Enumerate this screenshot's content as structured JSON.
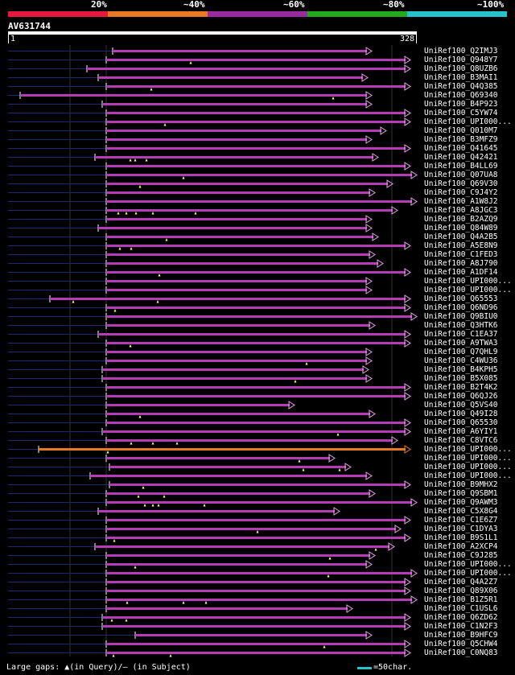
{
  "color_key": {
    "labels": [
      "20%",
      "~40%",
      "~60%",
      "~80%",
      "~100%"
    ],
    "colors": [
      "#e8173c",
      "#e87822",
      "#9a2b9e",
      "#23a81e",
      "#27c3c8"
    ]
  },
  "query": {
    "id": "AV631744",
    "start": "1",
    "end": "328"
  },
  "hits": [
    {
      "name": "UniRef100_Q2IMJ3",
      "start": 140,
      "end": 462,
      "color": "#b43cb4",
      "marks": []
    },
    {
      "name": "UniRef100_Q948Y7",
      "start": 132,
      "end": 510,
      "color": "#b43cb4",
      "marks": [
        237
      ]
    },
    {
      "name": "UniRef100_Q8UZB6",
      "start": 108,
      "end": 510,
      "color": "#b43cb4",
      "marks": []
    },
    {
      "name": "UniRef100_B3MAI1",
      "start": 122,
      "end": 457,
      "color": "#b43cb4",
      "marks": []
    },
    {
      "name": "UniRef100_Q4Q385",
      "start": 132,
      "end": 510,
      "color": "#b43cb4",
      "marks": [
        188
      ]
    },
    {
      "name": "UniRef100_Q69340",
      "start": 25,
      "end": 462,
      "color": "#b43cb4",
      "marks": [
        414
      ]
    },
    {
      "name": "UniRef100_B4P923",
      "start": 127,
      "end": 462,
      "color": "#b43cb4",
      "marks": []
    },
    {
      "name": "UniRef100_C5YW74",
      "start": 132,
      "end": 510,
      "color": "#b43cb4",
      "marks": []
    },
    {
      "name": "UniRef100_UPI000...",
      "start": 132,
      "end": 510,
      "color": "#b43cb4",
      "marks": [
        205
      ]
    },
    {
      "name": "UniRef100_Q010M7",
      "start": 132,
      "end": 480,
      "color": "#b43cb4",
      "marks": []
    },
    {
      "name": "UniRef100_B3MFZ9",
      "start": 132,
      "end": 462,
      "color": "#b43cb4",
      "marks": []
    },
    {
      "name": "UniRef100_Q41645",
      "start": 132,
      "end": 510,
      "color": "#b43cb4",
      "marks": []
    },
    {
      "name": "UniRef100_Q42421",
      "start": 118,
      "end": 470,
      "color": "#b43cb4",
      "marks": [
        162,
        168,
        182
      ]
    },
    {
      "name": "UniRef100_B4LL69",
      "start": 132,
      "end": 510,
      "color": "#b43cb4",
      "marks": []
    },
    {
      "name": "UniRef100_Q07UA8",
      "start": 132,
      "end": 518,
      "color": "#b43cb4",
      "marks": [
        228
      ]
    },
    {
      "name": "UniRef100_Q69V30",
      "start": 132,
      "end": 488,
      "color": "#b43cb4",
      "marks": [
        174
      ]
    },
    {
      "name": "UniRef100_C9J4Y2",
      "start": 132,
      "end": 466,
      "color": "#b43cb4",
      "marks": []
    },
    {
      "name": "UniRef100_A1W8J2",
      "start": 132,
      "end": 518,
      "color": "#b43cb4",
      "marks": []
    },
    {
      "name": "UniRef100_A8JGC3",
      "start": 132,
      "end": 494,
      "color": "#b43cb4",
      "marks": [
        147,
        157,
        169,
        190,
        243
      ]
    },
    {
      "name": "UniRef100_B2AZQ9",
      "start": 132,
      "end": 462,
      "color": "#b43cb4",
      "marks": []
    },
    {
      "name": "UniRef100_Q84W89",
      "start": 122,
      "end": 462,
      "color": "#b43cb4",
      "marks": []
    },
    {
      "name": "UniRef100_Q4A2B5",
      "start": 132,
      "end": 470,
      "color": "#b43cb4",
      "marks": [
        207
      ]
    },
    {
      "name": "UniRef100_A5E8N9",
      "start": 132,
      "end": 510,
      "color": "#b43cb4",
      "marks": [
        149,
        163
      ]
    },
    {
      "name": "UniRef100_C1FED3",
      "start": 132,
      "end": 466,
      "color": "#b43cb4",
      "marks": []
    },
    {
      "name": "UniRef100_A8J790",
      "start": 132,
      "end": 476,
      "color": "#b43cb4",
      "marks": []
    },
    {
      "name": "UniRef100_A1DF14",
      "start": 132,
      "end": 510,
      "color": "#b43cb4",
      "marks": [
        198
      ]
    },
    {
      "name": "UniRef100_UPI000...",
      "start": 132,
      "end": 462,
      "color": "#b43cb4",
      "marks": []
    },
    {
      "name": "UniRef100_UPI000...",
      "start": 132,
      "end": 462,
      "color": "#b43cb4",
      "marks": []
    },
    {
      "name": "UniRef100_Q65553",
      "start": 62,
      "end": 510,
      "color": "#b43cb4",
      "marks": [
        91,
        196
      ]
    },
    {
      "name": "UniRef100_Q6ND96",
      "start": 132,
      "end": 510,
      "color": "#b43cb4",
      "marks": [
        143
      ]
    },
    {
      "name": "UniRef100_Q9BIU0",
      "start": 132,
      "end": 518,
      "color": "#b43cb4",
      "marks": []
    },
    {
      "name": "UniRef100_Q3HTK6",
      "start": 132,
      "end": 466,
      "color": "#b43cb4",
      "marks": []
    },
    {
      "name": "UniRef100_C1EA37",
      "start": 122,
      "end": 510,
      "color": "#b43cb4",
      "marks": []
    },
    {
      "name": "UniRef100_A9TWA3",
      "start": 132,
      "end": 510,
      "color": "#b43cb4",
      "marks": [
        162
      ]
    },
    {
      "name": "UniRef100_Q7QHL9",
      "start": 132,
      "end": 462,
      "color": "#b43cb4",
      "marks": []
    },
    {
      "name": "UniRef100_C4WU36",
      "start": 132,
      "end": 462,
      "color": "#b43cb4",
      "marks": [
        381
      ]
    },
    {
      "name": "UniRef100_B4KPH5",
      "start": 127,
      "end": 458,
      "color": "#b43cb4",
      "marks": []
    },
    {
      "name": "UniRef100_B5X085",
      "start": 127,
      "end": 462,
      "color": "#b43cb4",
      "marks": [
        367
      ]
    },
    {
      "name": "UniRef100_B2T4K2",
      "start": 132,
      "end": 510,
      "color": "#b43cb4",
      "marks": []
    },
    {
      "name": "UniRef100_Q6QJ26",
      "start": 132,
      "end": 510,
      "color": "#b43cb4",
      "marks": []
    },
    {
      "name": "UniRef100_Q5VS40",
      "start": 132,
      "end": 366,
      "color": "#b43cb4",
      "marks": []
    },
    {
      "name": "UniRef100_Q49I28",
      "start": 132,
      "end": 466,
      "color": "#b43cb4",
      "marks": [
        174
      ]
    },
    {
      "name": "UniRef100_Q65530",
      "start": 132,
      "end": 510,
      "color": "#b43cb4",
      "marks": []
    },
    {
      "name": "UniRef100_A6YIY1",
      "start": 127,
      "end": 510,
      "color": "#b43cb4",
      "marks": [
        420
      ]
    },
    {
      "name": "UniRef100_C8VTC6",
      "start": 132,
      "end": 494,
      "color": "#b43cb4",
      "marks": [
        163,
        190,
        220
      ]
    },
    {
      "name": "UniRef100_UPI000...",
      "start": 48,
      "end": 510,
      "color": "#e87822",
      "marks": [
        134
      ]
    },
    {
      "name": "UniRef100_UPI000...",
      "start": 132,
      "end": 416,
      "color": "#b43cb4",
      "marks": [
        372
      ]
    },
    {
      "name": "UniRef100_UPI000...",
      "start": 136,
      "end": 436,
      "color": "#b43cb4",
      "marks": [
        377,
        422
      ]
    },
    {
      "name": "UniRef100_UPI000...",
      "start": 112,
      "end": 462,
      "color": "#b43cb4",
      "marks": []
    },
    {
      "name": "UniRef100_B9MHX2",
      "start": 136,
      "end": 510,
      "color": "#b43cb4",
      "marks": [
        178
      ]
    },
    {
      "name": "UniRef100_Q9SBM1",
      "start": 132,
      "end": 466,
      "color": "#b43cb4",
      "marks": [
        172,
        204
      ]
    },
    {
      "name": "UniRef100_Q9AWM3",
      "start": 132,
      "end": 518,
      "color": "#b43cb4",
      "marks": [
        180,
        190,
        197,
        254
      ]
    },
    {
      "name": "UniRef100_C5X8G4",
      "start": 122,
      "end": 422,
      "color": "#b43cb4",
      "marks": []
    },
    {
      "name": "UniRef100_C1E6Z7",
      "start": 132,
      "end": 510,
      "color": "#b43cb4",
      "marks": []
    },
    {
      "name": "UniRef100_C1DYA3",
      "start": 132,
      "end": 498,
      "color": "#b43cb4",
      "marks": [
        320
      ]
    },
    {
      "name": "UniRef100_B9S1L1",
      "start": 132,
      "end": 510,
      "color": "#b43cb4",
      "marks": [
        142
      ]
    },
    {
      "name": "UniRef100_A2XCP4",
      "start": 118,
      "end": 490,
      "color": "#b43cb4",
      "marks": [
        467
      ]
    },
    {
      "name": "UniRef100_C9J285",
      "start": 132,
      "end": 466,
      "color": "#b43cb4",
      "marks": [
        410
      ]
    },
    {
      "name": "UniRef100_UPI000...",
      "start": 132,
      "end": 462,
      "color": "#b43cb4",
      "marks": [
        168
      ]
    },
    {
      "name": "UniRef100_UPI000...",
      "start": 132,
      "end": 518,
      "color": "#b43cb4",
      "marks": [
        408
      ]
    },
    {
      "name": "UniRef100_Q4A2Z7",
      "start": 132,
      "end": 510,
      "color": "#b43cb4",
      "marks": []
    },
    {
      "name": "UniRef100_Q89X06",
      "start": 132,
      "end": 510,
      "color": "#b43cb4",
      "marks": []
    },
    {
      "name": "UniRef100_B1Z5R1",
      "start": 132,
      "end": 518,
      "color": "#b43cb4",
      "marks": [
        158,
        228,
        256
      ]
    },
    {
      "name": "UniRef100_C1USL6",
      "start": 132,
      "end": 438,
      "color": "#b43cb4",
      "marks": []
    },
    {
      "name": "UniRef100_Q6ZD62",
      "start": 127,
      "end": 510,
      "color": "#b43cb4",
      "marks": [
        139,
        157
      ]
    },
    {
      "name": "UniRef100_C1N2F3",
      "start": 127,
      "end": 510,
      "color": "#b43cb4",
      "marks": []
    },
    {
      "name": "UniRef100_B9HFC9",
      "start": 168,
      "end": 462,
      "color": "#b43cb4",
      "marks": []
    },
    {
      "name": "UniRef100_Q5CHW4",
      "start": 132,
      "end": 510,
      "color": "#b43cb4",
      "marks": [
        403
      ]
    },
    {
      "name": "UniRef100_C0NQ83",
      "start": 132,
      "end": 510,
      "color": "#b43cb4",
      "marks": [
        141,
        212
      ]
    }
  ],
  "legend": {
    "text": "Large gaps: ▲(in Query)/– (in Subject)",
    "scale_text": "=50char."
  }
}
